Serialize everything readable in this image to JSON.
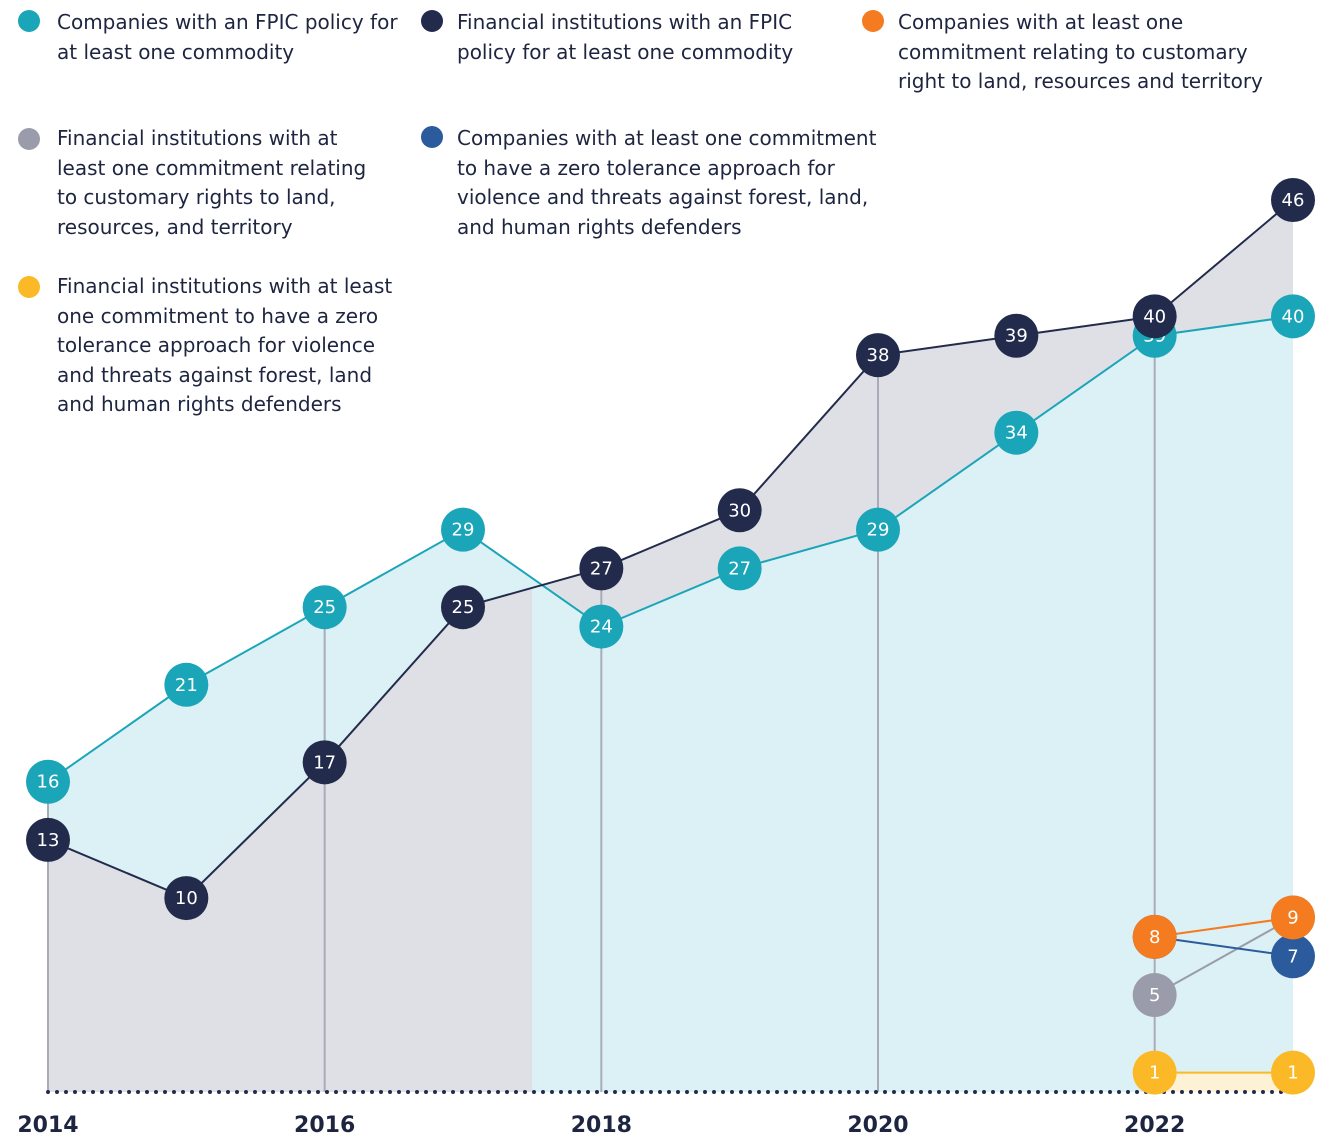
{
  "chart_data": {
    "type": "line",
    "x": [
      2014,
      2015,
      2016,
      2017,
      2018,
      2019,
      2020,
      2021,
      2022,
      2023
    ],
    "xlim": [
      2014,
      2023
    ],
    "xticks": [
      2014,
      2016,
      2018,
      2020,
      2022
    ],
    "series": [
      {
        "name": "Companies with an FPIC policy for at least one commodity",
        "color": "#1ba5b8",
        "values": [
          16,
          21,
          25,
          29,
          24,
          27,
          29,
          34,
          39,
          40
        ]
      },
      {
        "name": "Financial institutions with an FPIC policy for at least one commodity",
        "color": "#232b4c",
        "values": [
          13,
          10,
          17,
          25,
          27,
          30,
          38,
          39,
          40,
          46
        ]
      },
      {
        "name": "Companies with at least one commitment relating to customary right to land, resources and territory",
        "color": "#f47b20",
        "values": [
          null,
          null,
          null,
          null,
          null,
          null,
          null,
          null,
          8,
          9
        ]
      },
      {
        "name": "Financial institutions with at least one commitment relating to customary rights to land, resources, and territory",
        "color": "#9a9cab",
        "values": [
          null,
          null,
          null,
          null,
          null,
          null,
          null,
          null,
          5,
          9
        ]
      },
      {
        "name": "Companies with at least one commitment to have a zero tolerance approach for violence and threats against forest, land, and human rights defenders",
        "color": "#2b5b9c",
        "values": [
          null,
          null,
          null,
          null,
          null,
          null,
          null,
          null,
          8,
          7
        ]
      },
      {
        "name": "Financial institutions with at least one commitment to have a zero tolerance approach for violence and threats against forest, land and human rights defenders",
        "color": "#fbb927",
        "values": [
          null,
          null,
          null,
          null,
          null,
          null,
          null,
          null,
          1,
          1
        ]
      }
    ]
  }
}
